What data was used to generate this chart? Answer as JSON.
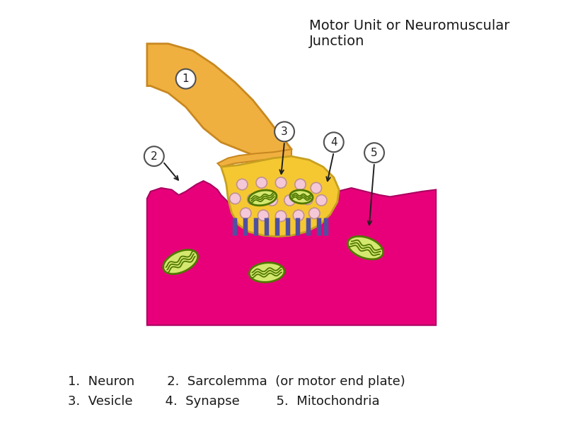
{
  "title": "Motor Unit or Neuromuscular\nJunction",
  "title_fontsize": 14,
  "background_color": "#ffffff",
  "caption_line1": "1.  Neuron        2.  Sarcolemma  (or motor end plate)",
  "caption_line2": "3.  Vesicle        4.  Synapse         5.  Mitochondria",
  "caption_fontsize": 13,
  "muscle_color_top": "#e8007a",
  "muscle_color_bot": "#cc006a",
  "muscle_border": "#9900508",
  "neuron_color": "#f0b040",
  "neuron_dark": "#c88820",
  "terminal_color": "#f5c832",
  "terminal_dark": "#c8a020",
  "vesicle_color": "#f5c8d8",
  "vesicle_border": "#c09090",
  "mito_fill_outer": "#d4e870",
  "mito_fill_inner": "#c0dc50",
  "mito_border": "#507800",
  "synapse_color": "#5050a0",
  "label_fc": "#ffffff",
  "label_ec": "#505050"
}
